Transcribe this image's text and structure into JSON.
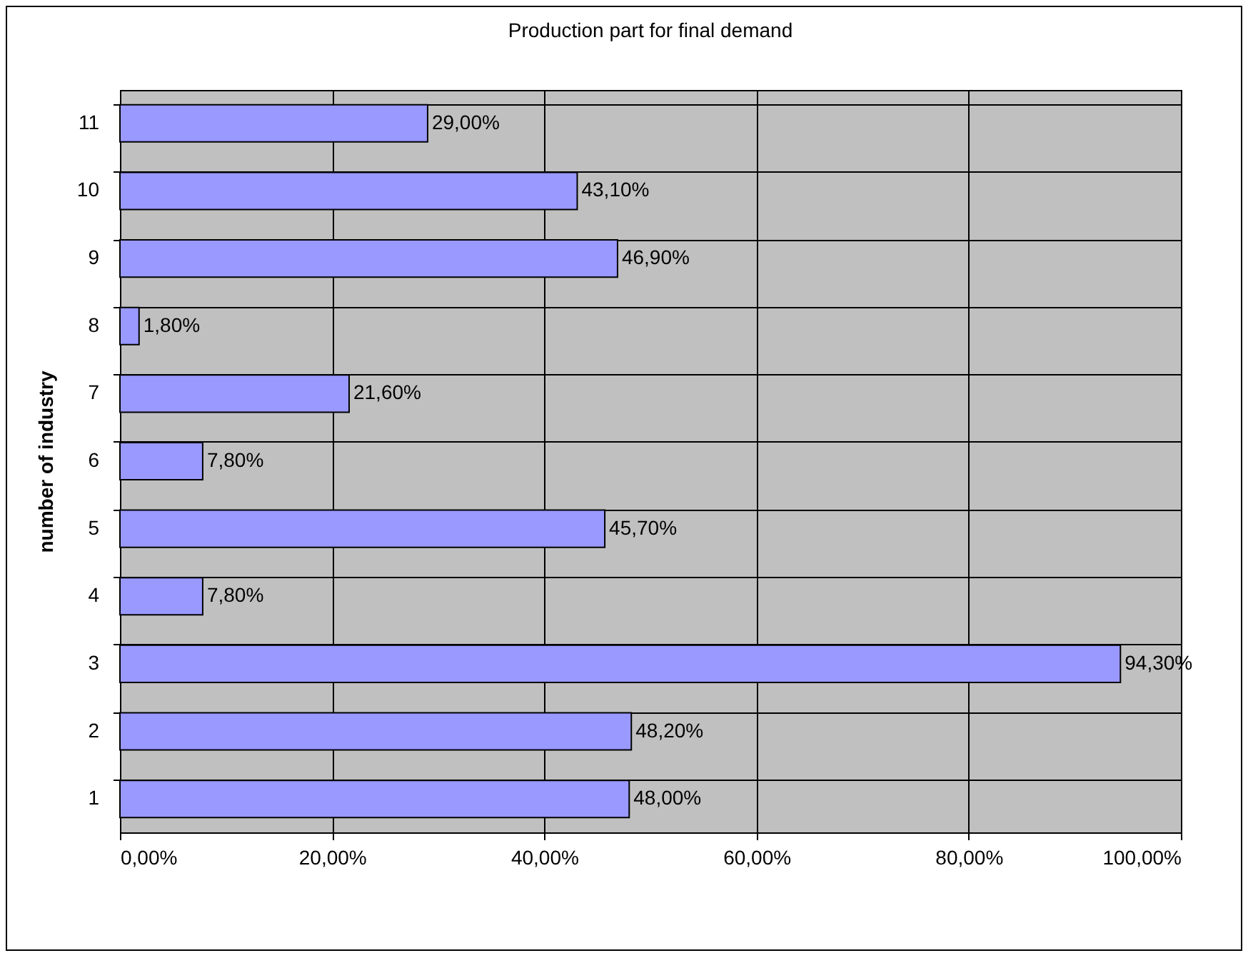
{
  "chart_data": {
    "type": "bar",
    "orientation": "horizontal",
    "title": "Production part for final demand",
    "ylabel": "number of industry",
    "categories": [
      "11",
      "10",
      "9",
      "8",
      "7",
      "6",
      "5",
      "4",
      "3",
      "2",
      "1"
    ],
    "values": [
      29.0,
      43.1,
      46.9,
      1.8,
      21.6,
      7.8,
      45.7,
      7.8,
      94.3,
      48.2,
      48.0
    ],
    "value_labels": [
      "29,00%",
      "43,10%",
      "46,90%",
      "1,80%",
      "21,60%",
      "7,80%",
      "45,70%",
      "7,80%",
      "94,30%",
      "48,20%",
      "48,00%"
    ],
    "color": "#9999ff",
    "xlim": [
      0,
      100
    ],
    "xticks": [
      {
        "value": 0,
        "label": "0,00%"
      },
      {
        "value": 20,
        "label": "20,00%"
      },
      {
        "value": 40,
        "label": "40,00%"
      },
      {
        "value": 60,
        "label": "60,00%"
      },
      {
        "value": 80,
        "label": "80,00%"
      },
      {
        "value": 100,
        "label": "100,00%"
      }
    ],
    "grid": true
  }
}
